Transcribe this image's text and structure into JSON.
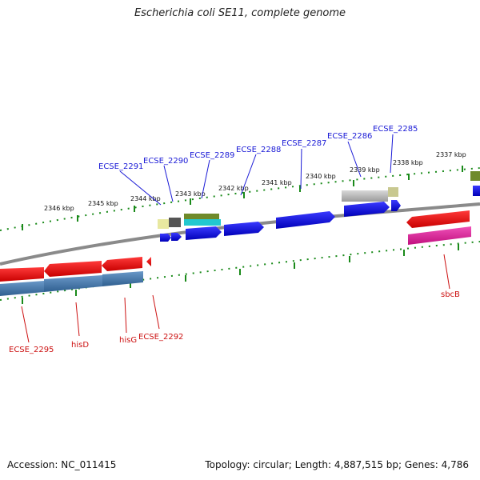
{
  "title": "Escherichia coli SE11, complete genome",
  "footer": {
    "accession": "Accession: NC_011415",
    "summary": "Topology: circular; Length: 4,887,515 bp; Genes: 4,786"
  },
  "scale_labels": [
    "2346 kbp",
    "2345 kbp",
    "2344 kbp",
    "2343 kbp",
    "2342 kbp",
    "2341 kbp",
    "2340 kbp",
    "2339 kbp",
    "2338 kbp",
    "2337 kbp"
  ],
  "gene_labels_top": [
    "ECSE_2291",
    "ECSE_2290",
    "ECSE_2289",
    "ECSE_2288",
    "ECSE_2287",
    "ECSE_2286",
    "ECSE_2285"
  ],
  "gene_labels_bottom": [
    "ECSE_2295",
    "hisD",
    "hisG",
    "ECSE_2292",
    "sbcB"
  ],
  "colors": {
    "forward_gene": "#1010e0",
    "reverse_gene": "#e81010",
    "reverse_cds": "#3f78b0",
    "pink_cds": "#e0209a",
    "grey_feature": "#b0b0b0",
    "olive_feature": "#6f8a2a",
    "tick_green": "#1a8a1a",
    "backbone": "#8a8a8a"
  }
}
